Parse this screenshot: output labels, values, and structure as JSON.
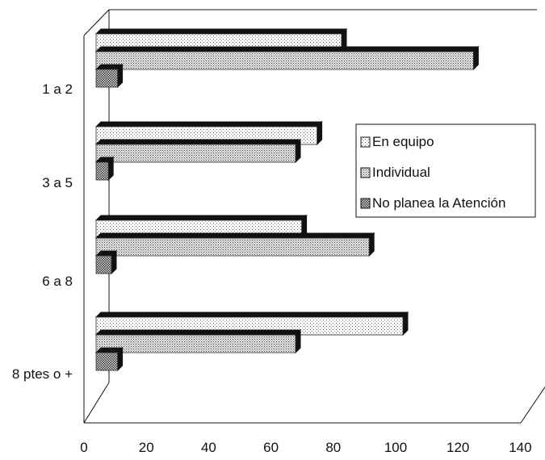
{
  "chart_data": {
    "type": "bar",
    "orientation": "horizontal",
    "three_d": true,
    "title": "",
    "xlabel": "",
    "ylabel": "",
    "categories": [
      "1 a 2",
      "3 a 5",
      "6 a 8",
      "8 ptes o +"
    ],
    "xlim": [
      0,
      140
    ],
    "x_ticks": [
      0,
      20,
      40,
      60,
      80,
      100,
      120,
      140
    ],
    "series": [
      {
        "name": "En equipo",
        "values": [
          80,
          72,
          67,
          100
        ],
        "pattern": "sparse-dots"
      },
      {
        "name": "Individual",
        "values": [
          123,
          65,
          89,
          65
        ],
        "pattern": "dense-dots"
      },
      {
        "name": "No planea la Atención",
        "values": [
          7,
          4,
          5,
          7
        ],
        "pattern": "checker"
      }
    ],
    "legend_position": "right",
    "grid": false
  }
}
